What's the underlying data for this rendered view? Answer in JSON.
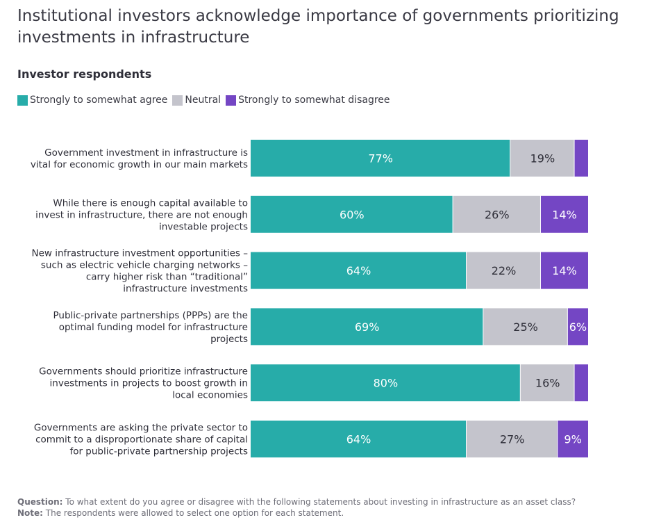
{
  "title": "Institutional investors acknowledge importance of governments prioritizing investments in infrastructure",
  "subtitle": "Investor respondents",
  "legend": [
    {
      "label": "Strongly to somewhat agree",
      "color": "#27aca9"
    },
    {
      "label": "Neutral",
      "color": "#c4c4cc"
    },
    {
      "label": "Strongly to somewhat disagree",
      "color": "#7446c4"
    }
  ],
  "chart_data": {
    "type": "bar",
    "orientation": "horizontal",
    "stacked": true,
    "xlim": [
      0,
      100
    ],
    "categories": [
      [
        "Government investment in infrastructure is",
        "vital for economic growth in our main markets"
      ],
      [
        "While there is enough capital available to",
        "invest in infrastructure, there are not enough",
        "investable projects"
      ],
      [
        "New infrastructure investment opportunities –",
        "such as electric vehicle charging networks –",
        "carry higher risk than “traditional”",
        "infrastructure investments"
      ],
      [
        "Public-private partnerships (PPPs) are the",
        "optimal funding model for infrastructure",
        "projects"
      ],
      [
        "Governments should prioritize infrastructure",
        "investments in projects to boost growth in",
        "local economies"
      ],
      [
        "Governments are asking the private sector to",
        "commit to a disproportionate share of capital",
        "for public-private partnership projects"
      ]
    ],
    "series": [
      {
        "name": "Strongly to somewhat agree",
        "color": "#27aca9",
        "values": [
          77,
          60,
          64,
          69,
          80,
          64
        ],
        "labels": [
          "77%",
          "60%",
          "64%",
          "69%",
          "80%",
          "64%"
        ]
      },
      {
        "name": "Neutral",
        "color": "#c4c4cc",
        "values": [
          19,
          26,
          22,
          25,
          16,
          27
        ],
        "labels": [
          "19%",
          "26%",
          "22%",
          "25%",
          "16%",
          "27%"
        ]
      },
      {
        "name": "Strongly to somewhat disagree",
        "color": "#7446c4",
        "values": [
          4,
          14,
          14,
          6,
          4,
          9
        ],
        "labels": [
          "",
          "14%",
          "14%",
          "6%",
          "",
          "9%"
        ]
      }
    ]
  },
  "footnote": {
    "question_label": "Question:",
    "question_text": "To what extent do you agree or disagree with the following statements about investing in infrastructure as an asset class?",
    "note_label": "Note:",
    "note_text": "The respondents were allowed to select one option for each statement."
  }
}
